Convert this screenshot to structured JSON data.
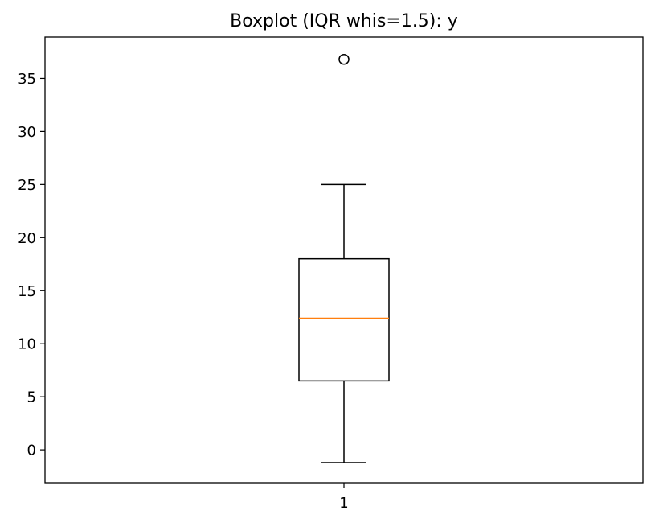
{
  "chart_data": {
    "type": "box",
    "title": "Boxplot (IQR whis=1.5): y",
    "xlabel": "",
    "ylabel": "",
    "categories": [
      "1"
    ],
    "ylim": [
      -3.1,
      38.9
    ],
    "yticks": [
      0,
      5,
      10,
      15,
      20,
      25,
      30,
      35
    ],
    "grid": false,
    "whis": 1.5,
    "boxes": [
      {
        "category": "1",
        "whisker_low": -1.2,
        "q1": 6.5,
        "median": 12.4,
        "q3": 18.0,
        "whisker_high": 25.0,
        "outliers": [
          36.8
        ]
      }
    ],
    "colors": {
      "box": "#000000",
      "median": "#ff7f0e",
      "outlier": "#000000"
    }
  }
}
